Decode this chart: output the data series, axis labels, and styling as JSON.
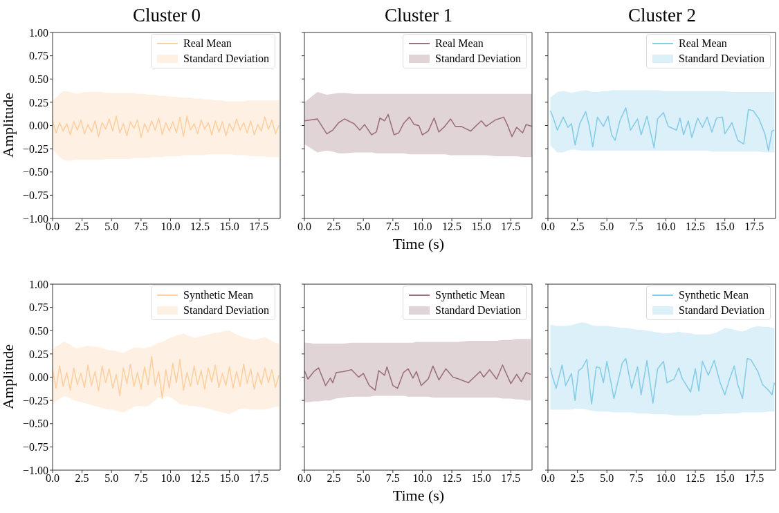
{
  "chart_data": [
    {
      "type": "line",
      "title": "Cluster 0",
      "ylabel": "Amplitude",
      "annotations": [
        "Standard Deviation"
      ],
      "xlim": [
        0,
        19.3
      ],
      "xticks": [
        {
          "value": 0,
          "label": "0.0"
        },
        2.5,
        {
          "value": 5,
          "label": "5.0"
        },
        7.5,
        {
          "value": 10,
          "label": "10.0"
        },
        12.5,
        {
          "value": 15,
          "label": "15.0"
        },
        17.5
      ],
      "ylim": [
        -1,
        1
      ],
      "yticks": [
        {
          "value": -1,
          "label": "−1.00"
        },
        {
          "value": -0.75,
          "label": "−0.75"
        },
        {
          "value": -0.5,
          "label": "−0.50"
        },
        {
          "value": -0.25,
          "label": "−0.25"
        },
        {
          "value": 0,
          "label": "0.00"
        },
        {
          "value": 0.25,
          "label": "0.25"
        },
        {
          "value": 0.5,
          "label": "0.50"
        },
        {
          "value": 0.75,
          "label": "0.75"
        },
        {
          "value": 1,
          "label": "1.00"
        }
      ],
      "legend": "top right",
      "series": [
        {
          "name": "Real Mean",
          "color": "#fdd0a2",
          "x": [
            0,
            0.3,
            0.6,
            0.9,
            1.2,
            1.5,
            1.8,
            2.1,
            2.4,
            2.7,
            3,
            3.3,
            3.6,
            3.9,
            4.2,
            4.5,
            4.8,
            5.1,
            5.4,
            5.7,
            6,
            6.3,
            6.6,
            6.9,
            7.2,
            7.5,
            7.8,
            8.1,
            8.4,
            8.7,
            9,
            9.3,
            9.6,
            9.9,
            10.2,
            10.5,
            10.8,
            11.1,
            11.4,
            11.7,
            12,
            12.3,
            12.6,
            12.9,
            13.2,
            13.5,
            13.8,
            14.1,
            14.4,
            14.7,
            15,
            15.3,
            15.6,
            15.9,
            16.2,
            16.5,
            16.8,
            17.1,
            17.4,
            17.7,
            18,
            18.3,
            18.6,
            18.9,
            19.2
          ],
          "values": [
            0.05,
            -0.08,
            0.03,
            -0.06,
            0.02,
            -0.1,
            0.04,
            -0.05,
            0.06,
            -0.09,
            0.01,
            -0.07,
            0.05,
            -0.12,
            0.03,
            -0.04,
            0.07,
            -0.06,
            0.1,
            -0.08,
            0.02,
            -0.11,
            0.04,
            -0.03,
            0.06,
            -0.13,
            0.02,
            -0.07,
            0.05,
            -0.05,
            0.08,
            -0.1,
            0.03,
            -0.06,
            0.04,
            -0.08,
            0.09,
            -0.12,
            0.1,
            -0.05,
            0.02,
            -0.09,
            0.06,
            -0.04,
            0.03,
            -0.1,
            0.05,
            -0.07,
            0.04,
            -0.11,
            0.02,
            -0.06,
            0.07,
            -0.05,
            0.03,
            -0.08,
            0.05,
            -0.1,
            0.01,
            -0.06,
            0.09,
            -0.04,
            0.06,
            -0.09,
            0.0
          ],
          "lower": [
            -0.26,
            -0.3,
            -0.34,
            -0.37,
            -0.38,
            -0.38,
            -0.37,
            -0.37,
            -0.37,
            -0.37,
            -0.37,
            -0.37,
            -0.37,
            -0.37,
            -0.37,
            -0.36,
            -0.36,
            -0.36,
            -0.36,
            -0.36,
            -0.36,
            -0.36,
            -0.36,
            -0.35,
            -0.35,
            -0.35,
            -0.35,
            -0.35,
            -0.34,
            -0.34,
            -0.34,
            -0.34,
            -0.33,
            -0.33,
            -0.33,
            -0.33,
            -0.33,
            -0.32,
            -0.32,
            -0.32,
            -0.32,
            -0.32,
            -0.32,
            -0.32,
            -0.31,
            -0.31,
            -0.31,
            -0.31,
            -0.31,
            -0.31,
            -0.31,
            -0.31,
            -0.32,
            -0.32,
            -0.32,
            -0.32,
            -0.33,
            -0.33,
            -0.33,
            -0.33,
            -0.33,
            -0.34,
            -0.34,
            -0.34,
            -0.34
          ],
          "upper": [
            0.27,
            0.3,
            0.34,
            0.37,
            0.37,
            0.36,
            0.35,
            0.34,
            0.35,
            0.36,
            0.36,
            0.36,
            0.36,
            0.36,
            0.36,
            0.35,
            0.35,
            0.35,
            0.35,
            0.35,
            0.35,
            0.35,
            0.35,
            0.35,
            0.34,
            0.34,
            0.34,
            0.33,
            0.33,
            0.33,
            0.32,
            0.32,
            0.32,
            0.31,
            0.31,
            0.31,
            0.3,
            0.3,
            0.3,
            0.3,
            0.29,
            0.29,
            0.29,
            0.28,
            0.28,
            0.28,
            0.27,
            0.27,
            0.27,
            0.26,
            0.26,
            0.26,
            0.26,
            0.26,
            0.26,
            0.27,
            0.27,
            0.27,
            0.27,
            0.27,
            0.27,
            0.27,
            0.27,
            0.27,
            0.27
          ]
        }
      ]
    },
    {
      "type": "line",
      "title": "Cluster 1",
      "xlabel": "Time (s)",
      "annotations": [
        "Standard Deviation"
      ],
      "tick_labels": "x",
      "xlim": [
        0,
        19.3
      ],
      "xticks": [
        {
          "value": 0,
          "label": "0.0"
        },
        2.5,
        {
          "value": 5,
          "label": "5.0"
        },
        7.5,
        {
          "value": 10,
          "label": "10.0"
        },
        12.5,
        {
          "value": 15,
          "label": "15.0"
        },
        17.5
      ],
      "ylim": [
        -1,
        1
      ],
      "yticks": [
        -1,
        -0.75,
        -0.5,
        -0.25,
        0,
        0.25,
        0.5,
        0.75,
        1
      ],
      "legend": "top right",
      "series": [
        {
          "name": "Real Mean",
          "color": "#9b717a",
          "x": [
            0,
            1.1,
            1.9,
            2.4,
            2.9,
            3.4,
            4.2,
            4.7,
            5.1,
            5.7,
            6.1,
            6.4,
            6.8,
            7.1,
            7.6,
            8,
            8.4,
            8.9,
            9.3,
            9.7,
            10,
            10.5,
            11,
            11.4,
            11.9,
            12.4,
            12.8,
            13.3,
            14.1,
            14.5,
            15,
            15.4,
            16.2,
            16.9,
            17.2,
            17.6,
            18,
            18.5,
            18.8,
            19.3
          ],
          "values": [
            0.05,
            0.07,
            -0.09,
            -0.05,
            0.03,
            0.07,
            0.02,
            -0.05,
            0.01,
            -0.1,
            -0.07,
            0.08,
            0.05,
            0.12,
            -0.1,
            -0.08,
            0.02,
            0.09,
            0.01,
            0,
            -0.1,
            -0.06,
            0.08,
            -0.07,
            -0.01,
            0.07,
            -0.01,
            -0.01,
            -0.06,
            -0.01,
            0.05,
            -0.01,
            0.06,
            0.09,
            0.01,
            -0.12,
            -0.02,
            -0.08,
            0.01,
            -0.01
          ],
          "lower": [
            -0.2,
            -0.29,
            -0.27,
            -0.28,
            -0.3,
            -0.3,
            -0.29,
            -0.29,
            -0.29,
            -0.29,
            -0.3,
            -0.3,
            -0.3,
            -0.3,
            -0.3,
            -0.3,
            -0.3,
            -0.31,
            -0.31,
            -0.31,
            -0.31,
            -0.31,
            -0.31,
            -0.31,
            -0.31,
            -0.32,
            -0.32,
            -0.32,
            -0.32,
            -0.32,
            -0.32,
            -0.32,
            -0.33,
            -0.33,
            -0.33,
            -0.33,
            -0.33,
            -0.34,
            -0.34,
            -0.34
          ],
          "upper": [
            0.25,
            0.36,
            0.33,
            0.34,
            0.35,
            0.35,
            0.34,
            0.34,
            0.34,
            0.34,
            0.34,
            0.34,
            0.34,
            0.34,
            0.34,
            0.34,
            0.34,
            0.34,
            0.34,
            0.34,
            0.34,
            0.34,
            0.34,
            0.34,
            0.34,
            0.34,
            0.34,
            0.34,
            0.34,
            0.34,
            0.34,
            0.34,
            0.34,
            0.34,
            0.34,
            0.34,
            0.34,
            0.34,
            0.34,
            0.34
          ]
        }
      ]
    },
    {
      "type": "line",
      "title": "Cluster 2",
      "annotations": [
        "Standard Deviation"
      ],
      "tick_labels": "x",
      "xlim": [
        0,
        19.3
      ],
      "xticks": [
        {
          "value": 0,
          "label": "0.0"
        },
        2.5,
        {
          "value": 5,
          "label": "5.0"
        },
        7.5,
        {
          "value": 10,
          "label": "10.0"
        },
        12.5,
        {
          "value": 15,
          "label": "15.0"
        },
        17.5
      ],
      "ylim": [
        -1,
        1
      ],
      "yticks": [
        -1,
        -0.75,
        -0.5,
        -0.25,
        0,
        0.25,
        0.5,
        0.75,
        1
      ],
      "legend": "top right",
      "series": [
        {
          "name": "Real Mean",
          "color": "#87cde8",
          "x": [
            0.2,
            0.4,
            0.8,
            1.3,
            1.7,
            2,
            2.3,
            2.7,
            3.2,
            3.5,
            3.8,
            4.2,
            4.7,
            5.1,
            5.4,
            5.7,
            6.1,
            6.6,
            7,
            7.6,
            7.9,
            8.4,
            9,
            9.3,
            9.8,
            10.2,
            10.9,
            11.2,
            11.5,
            11.9,
            12.2,
            12.7,
            13.1,
            13.5,
            13.9,
            14.3,
            14.8,
            15,
            15.6,
            16.1,
            16.6,
            17,
            17.4,
            17.9,
            18.4,
            18.7,
            19,
            19.2
          ],
          "values": [
            0.16,
            0.1,
            -0.05,
            0.09,
            -0.02,
            0.02,
            -0.21,
            0.02,
            0.15,
            0,
            -0.23,
            0.09,
            -0.01,
            0.1,
            -0.1,
            -0.16,
            0.05,
            0.19,
            -0.05,
            0.07,
            -0.1,
            0.1,
            -0.24,
            0.07,
            0.14,
            -0.01,
            -0.05,
            0.08,
            -0.1,
            0.05,
            -0.13,
            0.08,
            -0.02,
            0.09,
            -0.07,
            0.08,
            0.09,
            -0.09,
            0.03,
            -0.16,
            -0.2,
            0.17,
            0.16,
            0.07,
            -0.09,
            -0.27,
            -0.06,
            -0.05
          ],
          "lower": [
            -0.21,
            -0.24,
            -0.29,
            -0.29,
            -0.27,
            -0.26,
            -0.26,
            -0.27,
            -0.27,
            -0.27,
            -0.27,
            -0.27,
            -0.27,
            -0.27,
            -0.27,
            -0.27,
            -0.27,
            -0.27,
            -0.27,
            -0.27,
            -0.27,
            -0.27,
            -0.27,
            -0.27,
            -0.27,
            -0.27,
            -0.27,
            -0.27,
            -0.27,
            -0.27,
            -0.27,
            -0.27,
            -0.27,
            -0.27,
            -0.28,
            -0.28,
            -0.28,
            -0.28,
            -0.28,
            -0.28,
            -0.28,
            -0.28,
            -0.28,
            -0.28,
            -0.29,
            -0.29,
            -0.29,
            -0.29
          ],
          "upper": [
            0.3,
            0.32,
            0.36,
            0.37,
            0.36,
            0.35,
            0.36,
            0.37,
            0.38,
            0.37,
            0.36,
            0.36,
            0.37,
            0.37,
            0.38,
            0.38,
            0.38,
            0.38,
            0.38,
            0.38,
            0.38,
            0.38,
            0.38,
            0.38,
            0.37,
            0.37,
            0.37,
            0.37,
            0.37,
            0.37,
            0.37,
            0.37,
            0.37,
            0.37,
            0.37,
            0.37,
            0.37,
            0.37,
            0.36,
            0.36,
            0.36,
            0.36,
            0.36,
            0.36,
            0.36,
            0.36,
            0.36,
            0.36
          ]
        }
      ]
    },
    {
      "type": "line",
      "ylabel": "Amplitude",
      "annotations": [
        "Standard Deviation"
      ],
      "xlim": [
        0,
        19.3
      ],
      "xticks": [
        {
          "value": 0,
          "label": "0.0"
        },
        2.5,
        {
          "value": 5,
          "label": "5.0"
        },
        7.5,
        {
          "value": 10,
          "label": "10.0"
        },
        12.5,
        {
          "value": 15,
          "label": "15.0"
        },
        17.5
      ],
      "ylim": [
        -1,
        1
      ],
      "yticks": [
        {
          "value": -1,
          "label": "−1.00"
        },
        {
          "value": -0.75,
          "label": "−0.75"
        },
        {
          "value": -0.5,
          "label": "−0.50"
        },
        {
          "value": -0.25,
          "label": "−0.25"
        },
        {
          "value": 0,
          "label": "0.00"
        },
        {
          "value": 0.25,
          "label": "0.25"
        },
        {
          "value": 0.5,
          "label": "0.50"
        },
        {
          "value": 0.75,
          "label": "0.75"
        },
        {
          "value": 1,
          "label": "1.00"
        }
      ],
      "legend": "top right",
      "series": [
        {
          "name": "Synthetic Mean",
          "color": "#fdd0a2",
          "x": [
            0,
            0.3,
            0.6,
            0.9,
            1.2,
            1.5,
            1.8,
            2.1,
            2.4,
            2.7,
            3,
            3.3,
            3.6,
            3.9,
            4.2,
            4.5,
            4.8,
            5.1,
            5.4,
            5.7,
            6,
            6.3,
            6.6,
            6.9,
            7.2,
            7.5,
            7.8,
            8.1,
            8.4,
            8.7,
            9,
            9.3,
            9.6,
            9.9,
            10.2,
            10.5,
            10.8,
            11.1,
            11.4,
            11.7,
            12,
            12.3,
            12.6,
            12.9,
            13.2,
            13.5,
            13.8,
            14.1,
            14.4,
            14.7,
            15,
            15.3,
            15.6,
            15.9,
            16.2,
            16.5,
            16.8,
            17.1,
            17.4,
            17.7,
            18,
            18.3,
            18.6,
            18.9,
            19.2
          ],
          "values": [
            0.08,
            -0.12,
            0.12,
            -0.1,
            0.05,
            -0.14,
            0.1,
            -0.08,
            0.04,
            -0.11,
            0.13,
            -0.09,
            0.06,
            -0.15,
            0.12,
            -0.06,
            0.09,
            -0.12,
            0.03,
            -0.2,
            0.1,
            -0.07,
            0.14,
            -0.1,
            0.05,
            -0.13,
            0.11,
            -0.08,
            0.22,
            -0.09,
            0.06,
            -0.23,
            0.08,
            -0.12,
            0.15,
            -0.06,
            0.19,
            -0.14,
            0.05,
            -0.1,
            0.12,
            -0.08,
            0.07,
            -0.13,
            0.1,
            -0.05,
            0.13,
            -0.11,
            0.04,
            -0.09,
            0.11,
            -0.12,
            0.06,
            -0.1,
            0.14,
            -0.07,
            0.09,
            -0.13,
            0.05,
            -0.08,
            0.1,
            -0.06,
            0.08,
            -0.11,
            0.02
          ],
          "lower": [
            -0.29,
            -0.26,
            -0.23,
            -0.21,
            -0.21,
            -0.23,
            -0.25,
            -0.26,
            -0.27,
            -0.28,
            -0.29,
            -0.3,
            -0.31,
            -0.32,
            -0.33,
            -0.34,
            -0.35,
            -0.35,
            -0.36,
            -0.37,
            -0.38,
            -0.36,
            -0.34,
            -0.32,
            -0.31,
            -0.31,
            -0.32,
            -0.31,
            -0.28,
            -0.25,
            -0.22,
            -0.22,
            -0.21,
            -0.21,
            -0.23,
            -0.26,
            -0.29,
            -0.3,
            -0.3,
            -0.31,
            -0.31,
            -0.32,
            -0.32,
            -0.33,
            -0.34,
            -0.35,
            -0.36,
            -0.37,
            -0.38,
            -0.39,
            -0.4,
            -0.38,
            -0.36,
            -0.34,
            -0.34,
            -0.34,
            -0.35,
            -0.35,
            -0.35,
            -0.35,
            -0.35,
            -0.34,
            -0.33,
            -0.32,
            -0.32
          ],
          "upper": [
            0.3,
            0.33,
            0.35,
            0.38,
            0.37,
            0.35,
            0.32,
            0.31,
            0.32,
            0.33,
            0.34,
            0.33,
            0.33,
            0.32,
            0.31,
            0.3,
            0.29,
            0.29,
            0.28,
            0.27,
            0.26,
            0.28,
            0.3,
            0.32,
            0.32,
            0.31,
            0.31,
            0.32,
            0.33,
            0.35,
            0.37,
            0.38,
            0.4,
            0.42,
            0.43,
            0.45,
            0.46,
            0.47,
            0.45,
            0.44,
            0.42,
            0.43,
            0.44,
            0.45,
            0.46,
            0.47,
            0.48,
            0.48,
            0.49,
            0.5,
            0.5,
            0.48,
            0.46,
            0.44,
            0.43,
            0.42,
            0.41,
            0.4,
            0.41,
            0.42,
            0.43,
            0.41,
            0.39,
            0.37,
            0.36
          ]
        }
      ]
    },
    {
      "type": "line",
      "xlabel": "Time (s)",
      "annotations": [
        "Standard Deviation"
      ],
      "tick_labels": "x",
      "xlim": [
        0,
        19.3
      ],
      "xticks": [
        {
          "value": 0,
          "label": "0.0"
        },
        2.5,
        {
          "value": 5,
          "label": "5.0"
        },
        7.5,
        {
          "value": 10,
          "label": "10.0"
        },
        12.5,
        {
          "value": 15,
          "label": "15.0"
        },
        17.5
      ],
      "ylim": [
        -1,
        1
      ],
      "yticks": [
        -1,
        -0.75,
        -0.5,
        -0.25,
        0,
        0.25,
        0.5,
        0.75,
        1
      ],
      "legend": "top right",
      "series": [
        {
          "name": "Synthetic Mean",
          "color": "#9b717a",
          "x": [
            0,
            0.3,
            0.8,
            1.2,
            1.8,
            2.2,
            2.4,
            2.7,
            3.3,
            4,
            4.6,
            5,
            5.5,
            6,
            6.3,
            6.8,
            7,
            7.5,
            7.9,
            8.4,
            8.8,
            9.2,
            9.5,
            9.9,
            10.5,
            10.9,
            11.4,
            12,
            12.6,
            13.1,
            13.9,
            14.9,
            15.2,
            15.7,
            16.3,
            16.8,
            17.5,
            18,
            18.4,
            18.8,
            19.2
          ],
          "values": [
            0.07,
            -0.02,
            0.06,
            0.1,
            -0.09,
            -0.01,
            -0.06,
            0.05,
            0.06,
            0.08,
            0,
            0.04,
            -0.09,
            -0.14,
            0.07,
            0.02,
            0.11,
            -0.09,
            -0.12,
            0.05,
            0.09,
            -0.01,
            0.06,
            -0.09,
            -0.02,
            0.12,
            -0.03,
            0.09,
            0,
            -0.02,
            -0.06,
            0.06,
            0,
            0.08,
            -0.02,
            0.13,
            -0.07,
            0.03,
            -0.05,
            0.05,
            0.03
          ],
          "lower": [
            -0.27,
            -0.27,
            -0.26,
            -0.26,
            -0.25,
            -0.25,
            -0.24,
            -0.23,
            -0.22,
            -0.21,
            -0.21,
            -0.21,
            -0.21,
            -0.2,
            -0.2,
            -0.2,
            -0.2,
            -0.2,
            -0.2,
            -0.2,
            -0.21,
            -0.21,
            -0.21,
            -0.21,
            -0.21,
            -0.22,
            -0.22,
            -0.22,
            -0.22,
            -0.22,
            -0.22,
            -0.22,
            -0.22,
            -0.22,
            -0.22,
            -0.23,
            -0.23,
            -0.24,
            -0.24,
            -0.25,
            -0.25
          ],
          "upper": [
            0.37,
            0.37,
            0.36,
            0.36,
            0.36,
            0.36,
            0.36,
            0.36,
            0.36,
            0.37,
            0.37,
            0.37,
            0.37,
            0.37,
            0.37,
            0.37,
            0.37,
            0.37,
            0.37,
            0.37,
            0.37,
            0.37,
            0.38,
            0.38,
            0.38,
            0.38,
            0.38,
            0.38,
            0.38,
            0.38,
            0.39,
            0.39,
            0.39,
            0.39,
            0.39,
            0.4,
            0.4,
            0.41,
            0.41,
            0.41,
            0.41
          ]
        }
      ]
    },
    {
      "type": "line",
      "annotations": [
        "Standard Deviation"
      ],
      "tick_labels": "x",
      "xlim": [
        0,
        19.3
      ],
      "xticks": [
        {
          "value": 0,
          "label": "0.0"
        },
        2.5,
        {
          "value": 5,
          "label": "5.0"
        },
        7.5,
        {
          "value": 10,
          "label": "10.0"
        },
        12.5,
        {
          "value": 15,
          "label": "15.0"
        },
        17.5
      ],
      "ylim": [
        -1,
        1
      ],
      "yticks": [
        -1,
        -0.75,
        -0.5,
        -0.25,
        0,
        0.25,
        0.5,
        0.75,
        1
      ],
      "legend": "top right",
      "series": [
        {
          "name": "Synthetic Mean",
          "color": "#87cde8",
          "x": [
            0.2,
            0.4,
            0.7,
            1.2,
            1.5,
            2,
            2.3,
            2.6,
            2.9,
            3.3,
            3.7,
            4.1,
            4.4,
            4.7,
            5,
            5.6,
            6.3,
            6.6,
            7.1,
            7.6,
            7.9,
            8.4,
            8.9,
            9.3,
            9.8,
            10.1,
            10.7,
            11.1,
            11.4,
            12.1,
            12.5,
            12.8,
            13.1,
            13.6,
            14.1,
            14.6,
            15,
            15.4,
            15.8,
            16.1,
            16.5,
            16.9,
            17.2,
            17.8,
            18.2,
            18.7,
            19,
            19.2
          ],
          "values": [
            0.1,
            0,
            -0.12,
            0.13,
            -0.09,
            0.04,
            -0.25,
            0.07,
            0.1,
            0.19,
            -0.29,
            0.11,
            0.1,
            -0.06,
            0.17,
            -0.23,
            0.15,
            0.2,
            -0.12,
            0.11,
            -0.19,
            0.18,
            -0.28,
            0.09,
            0.17,
            -0.06,
            -0.02,
            0.1,
            -0.02,
            -0.16,
            0.09,
            -0.15,
            0.17,
            0.02,
            0.18,
            -0.06,
            -0.19,
            -0.02,
            0.12,
            -0.08,
            -0.23,
            0.2,
            0.19,
            0.06,
            -0.08,
            -0.14,
            -0.19,
            -0.06
          ],
          "lower": [
            -0.35,
            -0.35,
            -0.35,
            -0.35,
            -0.35,
            -0.35,
            -0.34,
            -0.34,
            -0.34,
            -0.35,
            -0.36,
            -0.37,
            -0.37,
            -0.37,
            -0.37,
            -0.38,
            -0.38,
            -0.38,
            -0.38,
            -0.39,
            -0.39,
            -0.39,
            -0.4,
            -0.4,
            -0.4,
            -0.4,
            -0.41,
            -0.41,
            -0.41,
            -0.41,
            -0.41,
            -0.41,
            -0.4,
            -0.4,
            -0.4,
            -0.4,
            -0.39,
            -0.39,
            -0.39,
            -0.39,
            -0.38,
            -0.38,
            -0.38,
            -0.38,
            -0.38,
            -0.37,
            -0.37,
            -0.37
          ],
          "upper": [
            0.56,
            0.56,
            0.55,
            0.55,
            0.55,
            0.56,
            0.57,
            0.58,
            0.59,
            0.58,
            0.56,
            0.55,
            0.55,
            0.55,
            0.55,
            0.54,
            0.53,
            0.53,
            0.52,
            0.51,
            0.51,
            0.5,
            0.49,
            0.48,
            0.47,
            0.47,
            0.48,
            0.49,
            0.48,
            0.47,
            0.46,
            0.46,
            0.46,
            0.46,
            0.47,
            0.5,
            0.53,
            0.52,
            0.51,
            0.5,
            0.49,
            0.51,
            0.53,
            0.55,
            0.54,
            0.54,
            0.53,
            0.53
          ]
        }
      ]
    }
  ]
}
